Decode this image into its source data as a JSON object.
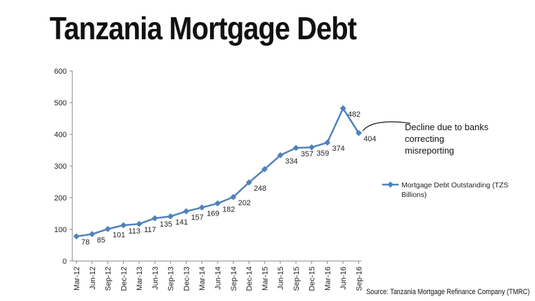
{
  "title": "Tanzania Mortgage Debt",
  "source": "Source: Tanzania Mortgage Refinance Company (TMRC)",
  "chart_data": {
    "type": "line",
    "categories": [
      "Mar-12",
      "Jun-12",
      "Sep-12",
      "Dec-12",
      "Mar-13",
      "Jun-13",
      "Sep-13",
      "Dec-13",
      "Mar-14",
      "Jun-14",
      "Sep-14",
      "Dec-14",
      "Mar-15",
      "Jun-15",
      "Sep-15",
      "Dec-15",
      "Mar-16",
      "Jun-16",
      "Sep-16"
    ],
    "series": [
      {
        "name": "Mortgage Debt Outstanding (TZS Billions)",
        "color": "#4f81bd",
        "values": [
          78,
          85,
          101,
          113,
          117,
          135,
          141,
          157,
          169,
          182,
          202,
          248,
          290,
          334,
          357,
          359,
          374,
          482,
          404
        ],
        "data_labels": [
          "78",
          "85",
          "101",
          "113",
          "117",
          "135",
          "141",
          "157",
          "169",
          "182",
          "202",
          "248",
          "",
          "334",
          "357",
          "359",
          "374",
          "482",
          "404"
        ]
      }
    ],
    "ylim": [
      0,
      600
    ],
    "yticks": [
      0,
      100,
      200,
      300,
      400,
      500,
      600
    ],
    "grid": false,
    "legend": "right",
    "annotation": [
      "Decline due to banks",
      "correcting",
      "misreporting"
    ]
  }
}
